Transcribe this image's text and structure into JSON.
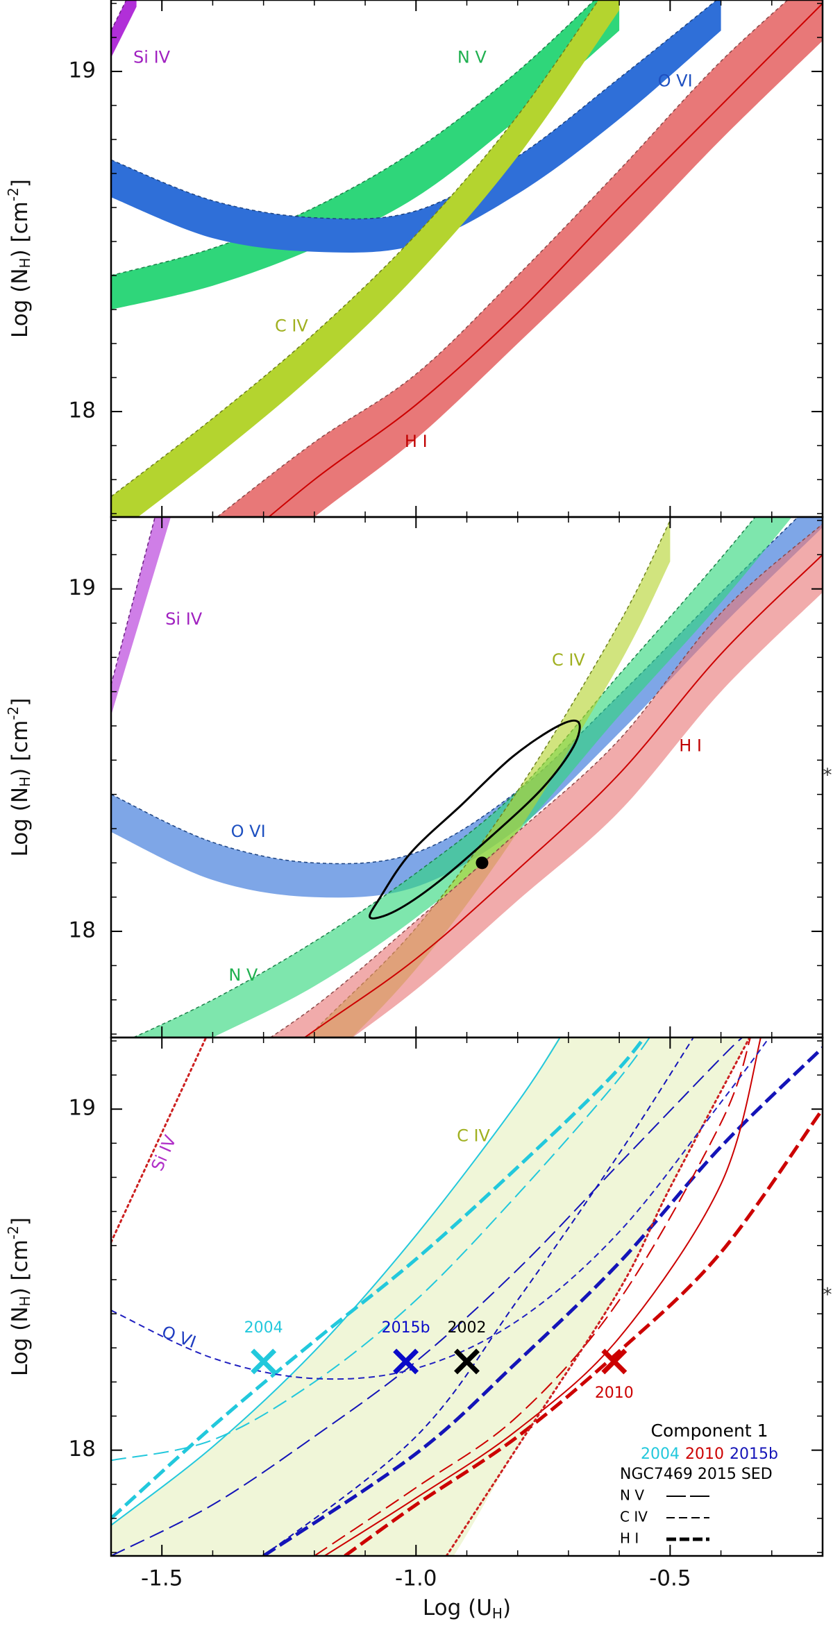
{
  "chart_data": [
    {
      "type": "band",
      "opacity": 1,
      "xlim": [
        -1.6,
        -0.2
      ],
      "ylim": [
        17.69,
        19.21
      ],
      "xticks": [
        -1.5,
        -1,
        -0.5
      ],
      "yticks": [
        18,
        19
      ],
      "xminorticks": [
        -1.6,
        -1.4,
        -1.3,
        -1.2,
        -1.1,
        -0.9,
        -0.8,
        -0.7,
        -0.6,
        -0.4,
        -0.3,
        -0.2
      ],
      "yminorticks": [
        17.7,
        17.8,
        17.9,
        18.1,
        18.2,
        18.3,
        18.4,
        18.5,
        18.6,
        18.7,
        18.8,
        18.9,
        19.1,
        19.2
      ],
      "ylabel": [
        "Log (N",
        "H",
        ") [cm",
        "-2",
        "]"
      ],
      "series": [
        {
          "name": "Si IV",
          "color": "#b12fd8",
          "label_color": "#a020c0",
          "x": [
            -1.6,
            -1.55
          ],
          "lower": [
            19.04,
            19.19
          ],
          "upper": [
            19.12,
            19.27
          ]
        },
        {
          "name": "N V",
          "color": "#2fd67a",
          "label_color": "#20b050",
          "x": [
            -1.6,
            -1.4,
            -1.2,
            -1.0,
            -0.8,
            -0.6
          ],
          "lower": [
            18.3,
            18.37,
            18.48,
            18.63,
            18.86,
            19.12
          ],
          "upper": [
            18.4,
            18.48,
            18.6,
            18.77,
            19.0,
            19.28
          ]
        },
        {
          "name": "O VI",
          "color": "#2f6fd8",
          "label_color": "#1e50c0",
          "x": [
            -1.6,
            -1.4,
            -1.2,
            -1.0,
            -0.8,
            -0.6,
            -0.4
          ],
          "lower": [
            18.63,
            18.51,
            18.47,
            18.49,
            18.64,
            18.86,
            19.12
          ],
          "upper": [
            18.74,
            18.62,
            18.57,
            18.59,
            18.75,
            18.98,
            19.22
          ]
        },
        {
          "name": "C IV",
          "color": "#b4d42f",
          "label_color": "#a0b020",
          "x": [
            -1.6,
            -1.4,
            -1.2,
            -1.0,
            -0.8,
            -0.6
          ],
          "lower": [
            17.63,
            17.86,
            18.11,
            18.4,
            18.75,
            19.18
          ],
          "upper": [
            17.75,
            17.98,
            18.23,
            18.52,
            18.87,
            19.3
          ]
        },
        {
          "name": "H I",
          "color": "#e87878",
          "label_color": "#c00000",
          "center_color": "#cc0000",
          "x": [
            -1.4,
            -1.2,
            -1.0,
            -0.8,
            -0.6,
            -0.4,
            -0.2
          ],
          "lower": [
            17.45,
            17.69,
            17.92,
            18.2,
            18.49,
            18.8,
            19.09
          ],
          "upper": [
            17.68,
            17.91,
            18.11,
            18.4,
            18.71,
            19.03,
            19.3
          ],
          "center": [
            17.55,
            17.8,
            18.02,
            18.29,
            18.6,
            18.9,
            19.2
          ]
        }
      ]
    },
    {
      "type": "band",
      "opacity": 0.62,
      "xlim": [
        -1.6,
        -0.2
      ],
      "ylim": [
        17.69,
        19.21
      ],
      "xticks": [
        -1.5,
        -1,
        -0.5
      ],
      "yticks": [
        18,
        19
      ],
      "xminorticks": [
        -1.6,
        -1.4,
        -1.3,
        -1.2,
        -1.1,
        -0.9,
        -0.8,
        -0.7,
        -0.6,
        -0.4,
        -0.3,
        -0.2
      ],
      "yminorticks": [
        17.7,
        17.8,
        17.9,
        18.1,
        18.2,
        18.3,
        18.4,
        18.5,
        18.6,
        18.7,
        18.8,
        18.9,
        19.1,
        19.2
      ],
      "ylabel": [
        "Log (N",
        "H",
        ") [cm",
        "-2",
        "]"
      ],
      "note": "*",
      "series": [
        {
          "name": "Si IV",
          "color": "#b12fd8",
          "label_color": "#a020c0",
          "x": [
            -1.6,
            -1.45
          ],
          "lower": [
            18.63,
            19.37
          ],
          "upper": [
            18.72,
            19.57
          ]
        },
        {
          "name": "O VI",
          "color": "#2f6fd8",
          "label_color": "#1e50c0",
          "x": [
            -1.6,
            -1.4,
            -1.2,
            -1.0,
            -0.8,
            -0.6,
            -0.4,
            -0.2
          ],
          "lower": [
            18.29,
            18.15,
            18.1,
            18.13,
            18.3,
            18.58,
            18.89,
            19.18
          ],
          "upper": [
            18.4,
            18.26,
            18.2,
            18.23,
            18.41,
            18.69,
            18.99,
            19.28
          ]
        },
        {
          "name": "N V",
          "color": "#2fd67a",
          "label_color": "#20b050",
          "x": [
            -1.6,
            -1.4,
            -1.2,
            -1.0,
            -0.8,
            -0.6,
            -0.4,
            -0.2
          ],
          "lower": [
            17.55,
            17.69,
            17.84,
            18.04,
            18.29,
            18.63,
            18.96,
            19.32
          ],
          "upper": [
            17.66,
            17.8,
            17.97,
            18.17,
            18.41,
            18.75,
            19.09,
            19.45
          ]
        },
        {
          "name": "C IV",
          "color": "#b4d42f",
          "label_color": "#a0b020",
          "x": [
            -1.4,
            -1.2,
            -1.0,
            -0.8,
            -0.6,
            -0.5
          ],
          "lower": [
            17.28,
            17.58,
            17.89,
            18.29,
            18.78,
            19.08
          ],
          "upper": [
            17.4,
            17.71,
            18.01,
            18.41,
            18.9,
            19.2
          ]
        },
        {
          "name": "H I",
          "color": "#e87878",
          "label_color": "#c00000",
          "center_color": "#cc0000",
          "x": [
            -1.4,
            -1.2,
            -1.0,
            -0.8,
            -0.6,
            -0.4,
            -0.2
          ],
          "lower": [
            17.4,
            17.61,
            17.83,
            18.09,
            18.35,
            18.7,
            18.99
          ],
          "upper": [
            17.58,
            17.78,
            18.03,
            18.29,
            18.56,
            18.93,
            19.19
          ],
          "center": [
            17.5,
            17.71,
            17.92,
            18.18,
            18.46,
            18.81,
            19.1
          ]
        }
      ],
      "ellipse": {
        "x": [
          -0.68,
          -0.69,
          -0.75,
          -0.85,
          -0.96,
          -1.04,
          -1.09,
          -1.07,
          -1.01,
          -0.91,
          -0.81,
          -0.72
        ],
        "y": [
          18.61,
          18.54,
          18.42,
          18.28,
          18.14,
          18.06,
          18.04,
          18.1,
          18.23,
          18.37,
          18.51,
          18.6
        ]
      },
      "point": {
        "x": -0.87,
        "y": 18.2
      }
    },
    {
      "type": "line",
      "xlim": [
        -1.6,
        -0.2
      ],
      "ylim": [
        17.69,
        19.21
      ],
      "xticks": [
        -1.5,
        {
          "value": -1,
          "label": "-1.0"
        },
        -0.5
      ],
      "yticks": [
        18,
        19
      ],
      "xminorticks": [
        -1.6,
        -1.4,
        -1.3,
        -1.2,
        -1.1,
        -0.9,
        -0.8,
        -0.7,
        -0.6,
        -0.4,
        -0.3,
        -0.2
      ],
      "yminorticks": [
        17.7,
        17.8,
        17.9,
        18.1,
        18.2,
        18.3,
        18.4,
        18.5,
        18.6,
        18.7,
        18.8,
        18.9,
        19.1,
        19.2
      ],
      "ylabel": [
        "Log (N",
        "H",
        ") [cm",
        "-2",
        "]"
      ],
      "xlabel": [
        "Log (U",
        "H",
        ")"
      ],
      "note": "*",
      "fill": {
        "color": "#f0f6d8",
        "x": [
          -1.6,
          -1.4,
          -1.2,
          -1.0,
          -0.8,
          -0.7,
          -0.6,
          -0.5,
          -0.34
        ],
        "lower": [
          17.5,
          17.5,
          17.5,
          17.55,
          18.01,
          18.24,
          18.47,
          18.77,
          19.22
        ],
        "upper": [
          17.78,
          18.01,
          18.29,
          18.63,
          19.02,
          19.25,
          19.4,
          19.4,
          19.4
        ]
      },
      "series": [
        {
          "color": "#22c8dc",
          "style": "solid",
          "x": [
            -1.6,
            -1.4,
            -1.2,
            -1.0,
            -0.8,
            -0.7
          ],
          "values": [
            17.78,
            18.01,
            18.29,
            18.63,
            19.02,
            19.25
          ]
        },
        {
          "color": "#22c8dc",
          "style": "dashed",
          "x": [
            -1.6,
            -1.4,
            -1.2,
            -1.0,
            -0.8,
            -0.6,
            -0.5
          ],
          "values": [
            17.97,
            18.03,
            18.2,
            18.44,
            18.75,
            19.09,
            19.3
          ]
        },
        {
          "color": "#22c8dc",
          "style": "thick-dashed",
          "x": [
            -1.6,
            -1.4,
            -1.2,
            -1.0,
            -0.8,
            -0.6,
            -0.5
          ],
          "values": [
            17.8,
            18.07,
            18.32,
            18.56,
            18.83,
            19.12,
            19.32
          ]
        },
        {
          "color": "#1414b8",
          "style": "fine-dashed",
          "x": [
            -1.3,
            -1.0,
            -0.8,
            -0.6,
            -0.45
          ],
          "values": [
            17.69,
            18.04,
            18.44,
            18.87,
            19.22
          ]
        },
        {
          "color": "#1414b8",
          "style": "dashed",
          "x": [
            -1.6,
            -1.4,
            -1.2,
            -1.0,
            -0.8,
            -0.6,
            -0.4,
            -0.35
          ],
          "values": [
            17.69,
            17.84,
            18.04,
            18.26,
            18.53,
            18.84,
            19.15,
            19.22
          ]
        },
        {
          "color": "#1414b8",
          "style": "thick-dashed",
          "x": [
            -1.3,
            -1.0,
            -0.8,
            -0.6,
            -0.4,
            -0.2
          ],
          "values": [
            17.69,
            17.99,
            18.26,
            18.55,
            18.89,
            19.18
          ]
        },
        {
          "color": "#cc0000",
          "style": "solid",
          "x": [
            -1.18,
            -1.0,
            -0.8,
            -0.6,
            -0.4,
            -0.32
          ],
          "values": [
            17.69,
            17.86,
            18.06,
            18.33,
            18.78,
            19.22
          ]
        },
        {
          "color": "#cc0000",
          "style": "dashed",
          "x": [
            -1.2,
            -1.0,
            -0.8,
            -0.6,
            -0.4,
            -0.34
          ],
          "values": [
            17.69,
            17.89,
            18.1,
            18.44,
            18.96,
            19.22
          ]
        },
        {
          "color": "#cc0000",
          "style": "thick-dashed",
          "x": [
            -1.14,
            -1.0,
            -0.8,
            -0.6,
            -0.4,
            -0.2
          ],
          "values": [
            17.69,
            17.84,
            18.04,
            18.29,
            18.58,
            19.0
          ]
        },
        {
          "color": "#cc2020",
          "style": "dotted",
          "x": [
            -1.6,
            -1.41
          ],
          "values": [
            18.61,
            19.22
          ]
        },
        {
          "color": "#cc2020",
          "style": "dotted",
          "x": [
            -0.94,
            -0.8,
            -0.6,
            -0.5,
            -0.34
          ],
          "values": [
            17.69,
            18.01,
            18.47,
            18.77,
            19.22
          ]
        },
        {
          "color": "#2020c0",
          "style": "fine-dashed",
          "x": [
            -1.6,
            -1.4,
            -1.2,
            -1.0,
            -0.8,
            -0.6,
            -0.4,
            -0.3
          ],
          "values": [
            18.41,
            18.27,
            18.21,
            18.24,
            18.38,
            18.64,
            19.02,
            19.22
          ]
        }
      ],
      "annotations": [
        {
          "text": "Si IV",
          "color": "#b030c8"
        },
        {
          "text": "O VI",
          "color": "#1e3cc0"
        },
        {
          "text": "C IV",
          "color": "#a0b020"
        }
      ],
      "markers": {
        "x": [
          -1.3,
          -1.02,
          -0.9,
          -0.61
        ],
        "y": [
          18.26,
          18.26,
          18.26,
          18.26
        ],
        "labels": [
          "2004",
          "2015b",
          "2002",
          "2010"
        ],
        "colors": [
          "#22c8dc",
          "#0a0ac8",
          "#000000",
          "#cc0000"
        ]
      },
      "legend": {
        "title": "Component 1",
        "years": [
          "2004",
          "2010",
          "2015b"
        ],
        "year_colors": [
          "#22c8dc",
          "#cc0000",
          "#1414b8"
        ],
        "sed": "NGC7469 2015 SED",
        "entries": [
          "N V",
          "C IV",
          "H I"
        ],
        "styles": [
          "solid",
          "dashed",
          "thick-dashed"
        ]
      }
    }
  ]
}
